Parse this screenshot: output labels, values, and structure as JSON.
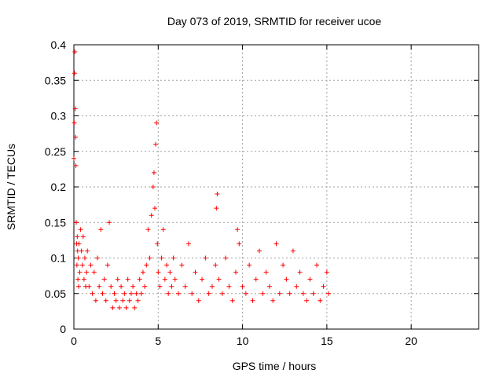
{
  "chart_data": {
    "type": "scatter",
    "title": "Day 073 of 2019, SRMTID for receiver ucoe",
    "xlabel": "GPS time / hours",
    "ylabel": "SRMTID / TECUs",
    "xlim": [
      0,
      24
    ],
    "ylim": [
      0,
      0.4
    ],
    "xticks": [
      0,
      5,
      10,
      15,
      20
    ],
    "xtick_labels": [
      "0",
      "5",
      "10",
      "15",
      "20"
    ],
    "yticks": [
      0,
      0.05,
      0.1,
      0.15,
      0.2,
      0.25,
      0.3,
      0.35,
      0.4
    ],
    "ytick_labels": [
      "0",
      "0.05",
      "0.1",
      "0.15",
      "0.2",
      "0.25",
      "0.3",
      "0.35",
      "0.4"
    ],
    "grid": true,
    "marker": "plus",
    "color": "#ff0000",
    "series": [
      {
        "name": "SRMTID",
        "x": [
          0.0,
          0.02,
          0.04,
          0.06,
          0.08,
          0.1,
          0.12,
          0.14,
          0.16,
          0.18,
          0.2,
          0.22,
          0.24,
          0.26,
          0.28,
          0.3,
          0.35,
          0.4,
          0.45,
          0.5,
          0.55,
          0.6,
          0.65,
          0.7,
          0.75,
          0.8,
          0.9,
          1.0,
          1.1,
          1.2,
          1.3,
          1.4,
          1.5,
          1.6,
          1.7,
          1.8,
          1.9,
          2.0,
          2.1,
          2.2,
          2.3,
          2.4,
          2.5,
          2.6,
          2.7,
          2.8,
          2.9,
          3.0,
          3.1,
          3.2,
          3.3,
          3.4,
          3.5,
          3.6,
          3.7,
          3.8,
          3.9,
          4.0,
          4.1,
          4.2,
          4.3,
          4.4,
          4.5,
          4.6,
          4.7,
          4.75,
          4.8,
          4.85,
          4.9,
          4.95,
          5.0,
          5.1,
          5.2,
          5.3,
          5.4,
          5.5,
          5.6,
          5.7,
          5.8,
          5.9,
          6.0,
          6.2,
          6.4,
          6.6,
          6.8,
          7.0,
          7.2,
          7.4,
          7.6,
          7.8,
          8.0,
          8.2,
          8.4,
          8.45,
          8.5,
          8.6,
          8.8,
          9.0,
          9.2,
          9.4,
          9.6,
          9.7,
          9.8,
          10.0,
          10.2,
          10.4,
          10.6,
          10.8,
          11.0,
          11.2,
          11.4,
          11.6,
          11.8,
          12.0,
          12.2,
          12.4,
          12.6,
          12.8,
          13.0,
          13.2,
          13.4,
          13.6,
          13.8,
          14.0,
          14.2,
          14.4,
          14.6,
          14.8,
          15.0,
          15.1
        ],
        "y": [
          0.24,
          0.29,
          0.36,
          0.39,
          0.31,
          0.27,
          0.23,
          0.15,
          0.12,
          0.09,
          0.13,
          0.11,
          0.07,
          0.1,
          0.06,
          0.12,
          0.08,
          0.14,
          0.11,
          0.09,
          0.13,
          0.07,
          0.1,
          0.06,
          0.08,
          0.11,
          0.06,
          0.09,
          0.05,
          0.08,
          0.04,
          0.1,
          0.06,
          0.14,
          0.05,
          0.07,
          0.04,
          0.09,
          0.15,
          0.06,
          0.03,
          0.05,
          0.04,
          0.07,
          0.03,
          0.06,
          0.04,
          0.05,
          0.03,
          0.07,
          0.04,
          0.05,
          0.06,
          0.03,
          0.05,
          0.04,
          0.07,
          0.05,
          0.08,
          0.06,
          0.09,
          0.14,
          0.1,
          0.16,
          0.2,
          0.22,
          0.17,
          0.26,
          0.29,
          0.12,
          0.08,
          0.06,
          0.1,
          0.14,
          0.07,
          0.09,
          0.05,
          0.08,
          0.06,
          0.1,
          0.07,
          0.05,
          0.09,
          0.06,
          0.12,
          0.05,
          0.08,
          0.04,
          0.07,
          0.1,
          0.05,
          0.06,
          0.09,
          0.17,
          0.19,
          0.07,
          0.05,
          0.1,
          0.06,
          0.04,
          0.08,
          0.14,
          0.12,
          0.06,
          0.05,
          0.09,
          0.04,
          0.07,
          0.11,
          0.05,
          0.08,
          0.06,
          0.04,
          0.12,
          0.05,
          0.09,
          0.07,
          0.05,
          0.11,
          0.06,
          0.08,
          0.05,
          0.04,
          0.07,
          0.05,
          0.09,
          0.04,
          0.06,
          0.08,
          0.05
        ]
      }
    ]
  }
}
